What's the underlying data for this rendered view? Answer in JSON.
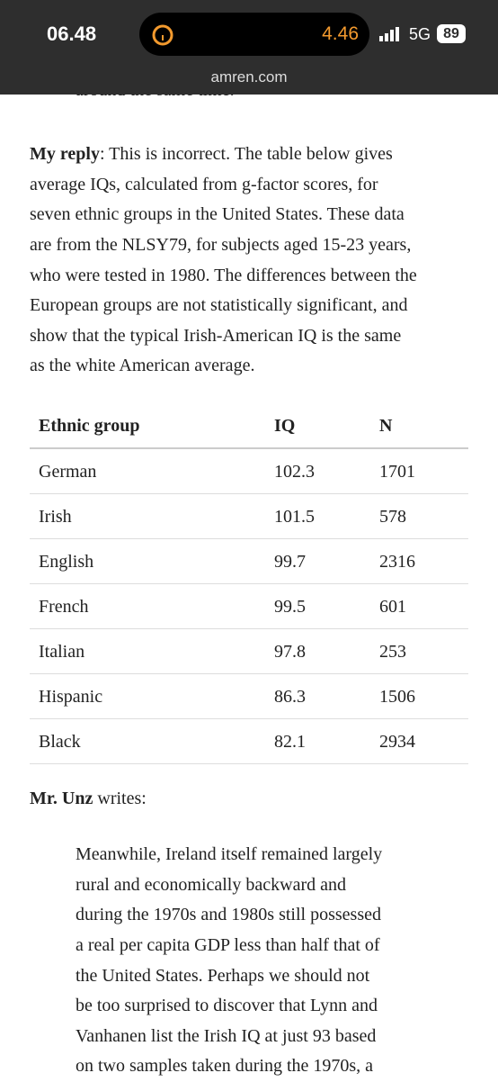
{
  "status_bar": {
    "time": "06.48",
    "timer": "4.46",
    "network": "5G",
    "battery": "89",
    "url": "amren.com"
  },
  "article": {
    "cut_line": "around the same time.",
    "reply": {
      "lead": "My reply",
      "first_line": ": This is incorrect. The table below gives",
      "lines": [
        "average IQs, calculated from g-factor scores, for",
        "seven ethnic groups in the United States. These data",
        "are from the NLSY79, for subjects aged 15-23 years,",
        "who were tested in 1980. The differences between the",
        "European groups are not statistically significant, and",
        "show that the typical Irish-American IQ is the same",
        "as the white American average."
      ]
    },
    "table": {
      "header": [
        "Ethnic group",
        "IQ",
        "N"
      ],
      "rows": [
        [
          "German",
          "102.3",
          "1701"
        ],
        [
          "Irish",
          "101.5",
          "578"
        ],
        [
          "English",
          "99.7",
          "2316"
        ],
        [
          "French",
          "99.5",
          "601"
        ],
        [
          "Italian",
          "97.8",
          "253"
        ],
        [
          "Hispanic",
          "86.3",
          "1506"
        ],
        [
          "Black",
          "82.1",
          "2934"
        ]
      ]
    },
    "unz": {
      "lead": "Mr. Unz",
      "rest": " writes:"
    },
    "quote": {
      "lines": [
        "Meanwhile, Ireland itself remained largely",
        "rural and economically backward and",
        "during the 1970s and 1980s still possessed",
        "a real per capita GDP less than half that of",
        "the United States. Perhaps we should not",
        "be too surprised to discover that Lynn and",
        "Vanhanen list the Irish IQ at just 93 based",
        "on two samples taken during the 1970s, a"
      ]
    }
  }
}
